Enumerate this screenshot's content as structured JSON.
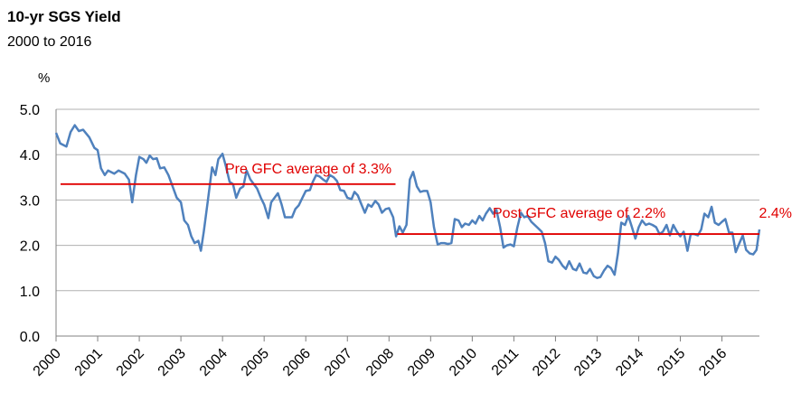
{
  "chart_data": {
    "type": "line",
    "title": "10-yr SGS Yield",
    "subtitle": "2000 to 2016",
    "ylabel": "%",
    "ylim": [
      0,
      5
    ],
    "yticks": [
      "0.0",
      "1.0",
      "2.0",
      "3.0",
      "4.0",
      "5.0"
    ],
    "xlim": [
      2000,
      2016.9
    ],
    "xticks": [
      "2000",
      "2001",
      "2002",
      "2003",
      "2004",
      "2005",
      "2006",
      "2007",
      "2008",
      "2009",
      "2010",
      "2011",
      "2012",
      "2013",
      "2014",
      "2015",
      "2016"
    ],
    "grid": true,
    "colors": {
      "series": "#4f81bd",
      "annotation": "#e00000",
      "grid": "#b0b0b0"
    },
    "series": [
      {
        "points": [
          [
            2000.0,
            4.48
          ],
          [
            2000.1,
            4.25
          ],
          [
            2000.25,
            4.18
          ],
          [
            2000.35,
            4.5
          ],
          [
            2000.45,
            4.65
          ],
          [
            2000.55,
            4.52
          ],
          [
            2000.65,
            4.55
          ],
          [
            2000.8,
            4.38
          ],
          [
            2000.92,
            4.15
          ],
          [
            2001.0,
            4.1
          ],
          [
            2001.08,
            3.7
          ],
          [
            2001.17,
            3.55
          ],
          [
            2001.25,
            3.65
          ],
          [
            2001.4,
            3.58
          ],
          [
            2001.5,
            3.65
          ],
          [
            2001.65,
            3.58
          ],
          [
            2001.75,
            3.45
          ],
          [
            2001.83,
            2.95
          ],
          [
            2001.92,
            3.55
          ],
          [
            2002.0,
            3.95
          ],
          [
            2002.1,
            3.9
          ],
          [
            2002.17,
            3.82
          ],
          [
            2002.25,
            3.98
          ],
          [
            2002.33,
            3.9
          ],
          [
            2002.42,
            3.92
          ],
          [
            2002.5,
            3.7
          ],
          [
            2002.6,
            3.72
          ],
          [
            2002.7,
            3.55
          ],
          [
            2002.8,
            3.3
          ],
          [
            2002.9,
            3.05
          ],
          [
            2003.0,
            2.95
          ],
          [
            2003.08,
            2.55
          ],
          [
            2003.17,
            2.45
          ],
          [
            2003.25,
            2.2
          ],
          [
            2003.33,
            2.05
          ],
          [
            2003.42,
            2.1
          ],
          [
            2003.48,
            1.88
          ],
          [
            2003.55,
            2.3
          ],
          [
            2003.65,
            3.0
          ],
          [
            2003.75,
            3.72
          ],
          [
            2003.83,
            3.55
          ],
          [
            2003.9,
            3.9
          ],
          [
            2004.0,
            4.02
          ],
          [
            2004.08,
            3.75
          ],
          [
            2004.17,
            3.4
          ],
          [
            2004.25,
            3.35
          ],
          [
            2004.33,
            3.05
          ],
          [
            2004.42,
            3.25
          ],
          [
            2004.5,
            3.3
          ],
          [
            2004.58,
            3.65
          ],
          [
            2004.67,
            3.45
          ],
          [
            2004.75,
            3.35
          ],
          [
            2004.83,
            3.25
          ],
          [
            2004.92,
            3.05
          ],
          [
            2005.0,
            2.9
          ],
          [
            2005.1,
            2.6
          ],
          [
            2005.17,
            2.95
          ],
          [
            2005.25,
            3.05
          ],
          [
            2005.33,
            3.15
          ],
          [
            2005.42,
            2.9
          ],
          [
            2005.5,
            2.62
          ],
          [
            2005.58,
            2.62
          ],
          [
            2005.67,
            2.62
          ],
          [
            2005.75,
            2.8
          ],
          [
            2005.83,
            2.88
          ],
          [
            2005.92,
            3.05
          ],
          [
            2006.0,
            3.2
          ],
          [
            2006.1,
            3.22
          ],
          [
            2006.17,
            3.4
          ],
          [
            2006.25,
            3.55
          ],
          [
            2006.33,
            3.52
          ],
          [
            2006.42,
            3.45
          ],
          [
            2006.5,
            3.4
          ],
          [
            2006.58,
            3.55
          ],
          [
            2006.67,
            3.5
          ],
          [
            2006.75,
            3.42
          ],
          [
            2006.83,
            3.22
          ],
          [
            2006.92,
            3.2
          ],
          [
            2007.0,
            3.05
          ],
          [
            2007.1,
            3.02
          ],
          [
            2007.17,
            3.18
          ],
          [
            2007.25,
            3.1
          ],
          [
            2007.33,
            2.92
          ],
          [
            2007.42,
            2.72
          ],
          [
            2007.5,
            2.9
          ],
          [
            2007.58,
            2.85
          ],
          [
            2007.67,
            2.98
          ],
          [
            2007.75,
            2.9
          ],
          [
            2007.83,
            2.72
          ],
          [
            2007.92,
            2.8
          ],
          [
            2008.0,
            2.82
          ],
          [
            2008.1,
            2.62
          ],
          [
            2008.17,
            2.2
          ],
          [
            2008.25,
            2.42
          ],
          [
            2008.33,
            2.28
          ],
          [
            2008.42,
            2.45
          ],
          [
            2008.5,
            3.45
          ],
          [
            2008.58,
            3.62
          ],
          [
            2008.67,
            3.3
          ],
          [
            2008.75,
            3.18
          ],
          [
            2008.83,
            3.2
          ],
          [
            2008.92,
            3.2
          ],
          [
            2009.0,
            2.95
          ],
          [
            2009.08,
            2.4
          ],
          [
            2009.17,
            2.02
          ],
          [
            2009.25,
            2.05
          ],
          [
            2009.33,
            2.05
          ],
          [
            2009.42,
            2.03
          ],
          [
            2009.5,
            2.05
          ],
          [
            2009.58,
            2.58
          ],
          [
            2009.67,
            2.55
          ],
          [
            2009.75,
            2.4
          ],
          [
            2009.83,
            2.48
          ],
          [
            2009.92,
            2.45
          ],
          [
            2010.0,
            2.55
          ],
          [
            2010.08,
            2.48
          ],
          [
            2010.17,
            2.65
          ],
          [
            2010.25,
            2.55
          ],
          [
            2010.33,
            2.7
          ],
          [
            2010.42,
            2.82
          ],
          [
            2010.5,
            2.7
          ],
          [
            2010.58,
            2.78
          ],
          [
            2010.67,
            2.4
          ],
          [
            2010.75,
            1.95
          ],
          [
            2010.83,
            2.0
          ],
          [
            2010.92,
            2.02
          ],
          [
            2011.0,
            1.98
          ],
          [
            2011.08,
            2.38
          ],
          [
            2011.17,
            2.72
          ],
          [
            2011.25,
            2.62
          ],
          [
            2011.33,
            2.65
          ],
          [
            2011.42,
            2.52
          ],
          [
            2011.5,
            2.45
          ],
          [
            2011.58,
            2.38
          ],
          [
            2011.67,
            2.3
          ],
          [
            2011.75,
            2.05
          ],
          [
            2011.83,
            1.65
          ],
          [
            2011.92,
            1.62
          ],
          [
            2012.0,
            1.75
          ],
          [
            2012.08,
            1.68
          ],
          [
            2012.17,
            1.55
          ],
          [
            2012.25,
            1.48
          ],
          [
            2012.33,
            1.65
          ],
          [
            2012.42,
            1.48
          ],
          [
            2012.5,
            1.45
          ],
          [
            2012.58,
            1.6
          ],
          [
            2012.67,
            1.4
          ],
          [
            2012.75,
            1.38
          ],
          [
            2012.83,
            1.48
          ],
          [
            2012.92,
            1.32
          ],
          [
            2013.0,
            1.28
          ],
          [
            2013.08,
            1.3
          ],
          [
            2013.17,
            1.45
          ],
          [
            2013.25,
            1.55
          ],
          [
            2013.33,
            1.5
          ],
          [
            2013.42,
            1.35
          ],
          [
            2013.5,
            1.82
          ],
          [
            2013.58,
            2.5
          ],
          [
            2013.67,
            2.45
          ],
          [
            2013.75,
            2.65
          ],
          [
            2013.83,
            2.42
          ],
          [
            2013.92,
            2.15
          ],
          [
            2014.0,
            2.4
          ],
          [
            2014.08,
            2.55
          ],
          [
            2014.17,
            2.45
          ],
          [
            2014.25,
            2.48
          ],
          [
            2014.33,
            2.45
          ],
          [
            2014.42,
            2.4
          ],
          [
            2014.5,
            2.25
          ],
          [
            2014.58,
            2.3
          ],
          [
            2014.67,
            2.45
          ],
          [
            2014.75,
            2.22
          ],
          [
            2014.83,
            2.45
          ],
          [
            2014.92,
            2.3
          ],
          [
            2015.0,
            2.2
          ],
          [
            2015.08,
            2.3
          ],
          [
            2015.17,
            1.88
          ],
          [
            2015.25,
            2.25
          ],
          [
            2015.33,
            2.25
          ],
          [
            2015.42,
            2.22
          ],
          [
            2015.5,
            2.35
          ],
          [
            2015.58,
            2.7
          ],
          [
            2015.67,
            2.62
          ],
          [
            2015.75,
            2.85
          ],
          [
            2015.83,
            2.5
          ],
          [
            2015.92,
            2.45
          ],
          [
            2016.0,
            2.52
          ],
          [
            2016.08,
            2.58
          ],
          [
            2016.17,
            2.28
          ],
          [
            2016.25,
            2.28
          ],
          [
            2016.33,
            1.85
          ],
          [
            2016.42,
            2.05
          ],
          [
            2016.5,
            2.22
          ],
          [
            2016.58,
            1.9
          ],
          [
            2016.67,
            1.82
          ],
          [
            2016.75,
            1.8
          ],
          [
            2016.83,
            1.9
          ],
          [
            2016.9,
            2.35
          ]
        ]
      }
    ],
    "annotations": [
      {
        "label": "Pre GFC average of 3.3%",
        "value": 3.35,
        "x_start": 2000.0,
        "x_end": 2008.2
      },
      {
        "label": "Post GFC average of 2.2%",
        "value": 2.25,
        "x_start": 2008.2,
        "x_end": 2016.9
      },
      {
        "label": "2.4%"
      }
    ]
  }
}
